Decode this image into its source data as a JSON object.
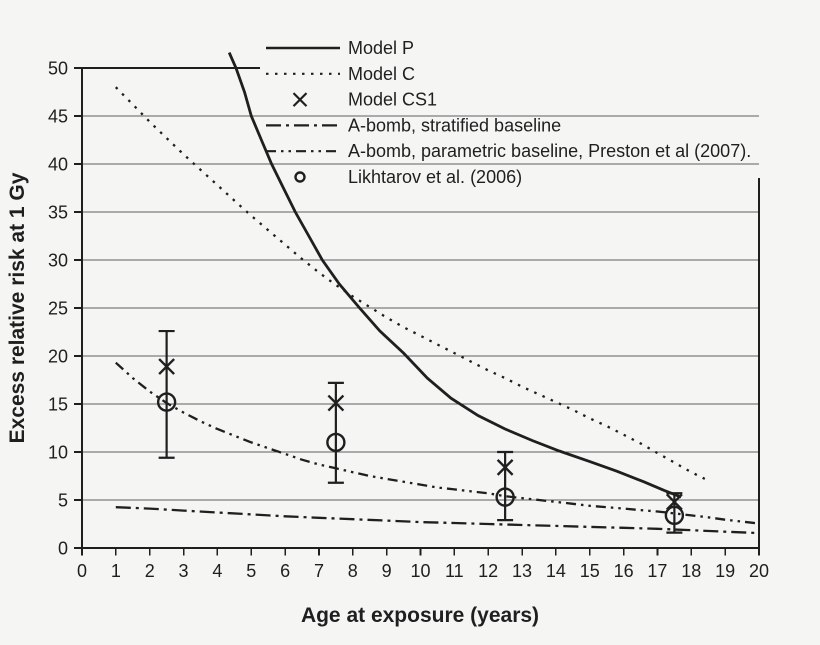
{
  "figure": {
    "background": "#f5f5f3",
    "ink_color": "#1f1f1f",
    "grid_color": "#606060"
  },
  "chart_data": {
    "type": "line",
    "title": "",
    "xlabel": "Age at exposure (years)",
    "ylabel": "Excess relative risk at 1 Gy",
    "xlim": [
      0,
      20
    ],
    "ylim": [
      0,
      50
    ],
    "x_ticks": [
      0,
      1,
      2,
      3,
      4,
      5,
      6,
      7,
      8,
      9,
      10,
      11,
      12,
      13,
      14,
      15,
      16,
      17,
      18,
      19,
      20
    ],
    "y_ticks": [
      0,
      5,
      10,
      15,
      20,
      25,
      30,
      35,
      40,
      45,
      50
    ],
    "grid": "horizontal gridlines every 5 units",
    "legend_position": "top-right inside plot, transparent background",
    "series": [
      {
        "id": "model_p",
        "label": "Model P",
        "style": "solid",
        "points": [
          [
            4.35,
            51.6
          ],
          [
            4.55,
            50
          ],
          [
            4.8,
            47.5
          ],
          [
            5.0,
            45
          ],
          [
            5.3,
            42.5
          ],
          [
            5.6,
            40
          ],
          [
            5.95,
            37.5
          ],
          [
            6.3,
            35
          ],
          [
            6.7,
            32.5
          ],
          [
            7.1,
            30
          ],
          [
            7.6,
            27.5
          ],
          [
            8.2,
            25
          ],
          [
            8.8,
            22.6
          ],
          [
            9.5,
            20.3
          ],
          [
            10.2,
            17.7
          ],
          [
            10.9,
            15.6
          ],
          [
            11.7,
            13.8
          ],
          [
            12.5,
            12.4
          ],
          [
            13.3,
            11.2
          ],
          [
            14.1,
            10.1
          ],
          [
            15,
            9
          ],
          [
            15.8,
            8
          ],
          [
            16.6,
            6.9
          ],
          [
            17.2,
            6
          ],
          [
            17.7,
            5.3
          ]
        ]
      },
      {
        "id": "model_c",
        "label": "Model C",
        "style": "dotted",
        "points": [
          [
            1,
            48
          ],
          [
            1.5,
            46.2
          ],
          [
            2,
            44.4
          ],
          [
            2.5,
            42.7
          ],
          [
            3,
            41
          ],
          [
            3.5,
            39.4
          ],
          [
            4,
            37.8
          ],
          [
            4.5,
            36.2
          ],
          [
            5,
            34.6
          ],
          [
            5.5,
            33.1
          ],
          [
            6,
            31.6
          ],
          [
            6.5,
            30.1
          ],
          [
            7,
            28.7
          ],
          [
            7.5,
            27.4
          ],
          [
            8,
            26.2
          ],
          [
            8.5,
            25.1
          ],
          [
            9,
            24
          ],
          [
            9.5,
            23
          ],
          [
            10,
            22.1
          ],
          [
            10.5,
            21.2
          ],
          [
            11,
            20.3
          ],
          [
            11.5,
            19.4
          ],
          [
            12,
            18.5
          ],
          [
            12.5,
            17.7
          ],
          [
            13,
            16.8
          ],
          [
            13.5,
            16
          ],
          [
            14,
            15.2
          ],
          [
            14.5,
            14.4
          ],
          [
            15,
            13.5
          ],
          [
            15.5,
            12.7
          ],
          [
            16,
            11.8
          ],
          [
            16.5,
            10.9
          ],
          [
            17,
            9.9
          ],
          [
            17.5,
            8.9
          ],
          [
            18,
            7.9
          ],
          [
            18.4,
            7.2
          ]
        ]
      },
      {
        "id": "model_cs1",
        "label": "Model CS1",
        "style": "marker-x",
        "points": [
          [
            2.5,
            18.9
          ],
          [
            7.5,
            15.1
          ],
          [
            12.5,
            8.4
          ],
          [
            17.5,
            4.8
          ]
        ]
      },
      {
        "id": "abomb_stratified",
        "label": "A-bomb, stratified baseline",
        "style": "dash-dot-long",
        "points": [
          [
            1,
            4.25
          ],
          [
            2,
            4.1
          ],
          [
            3,
            3.9
          ],
          [
            4,
            3.7
          ],
          [
            5,
            3.5
          ],
          [
            6,
            3.3
          ],
          [
            7,
            3.15
          ],
          [
            8,
            3.0
          ],
          [
            9,
            2.85
          ],
          [
            10,
            2.7
          ],
          [
            11,
            2.6
          ],
          [
            12,
            2.5
          ],
          [
            13,
            2.4
          ],
          [
            14,
            2.3
          ],
          [
            15,
            2.2
          ],
          [
            16,
            2.1
          ],
          [
            17,
            2.0
          ],
          [
            18,
            1.85
          ],
          [
            19,
            1.7
          ],
          [
            20,
            1.55
          ]
        ]
      },
      {
        "id": "abomb_parametric",
        "label": "A-bomb, parametric baseline, Preston et al (2007).",
        "style": "dash-dot-dot",
        "points": [
          [
            1,
            19.3
          ],
          [
            1.5,
            17.7
          ],
          [
            2,
            16.3
          ],
          [
            2.5,
            15.1
          ],
          [
            3,
            14.1
          ],
          [
            3.5,
            13.2
          ],
          [
            4,
            12.4
          ],
          [
            4.5,
            11.7
          ],
          [
            5,
            11
          ],
          [
            5.5,
            10.4
          ],
          [
            6,
            9.8
          ],
          [
            6.5,
            9.2
          ],
          [
            7,
            8.7
          ],
          [
            7.5,
            8.3
          ],
          [
            8,
            7.9
          ],
          [
            8.5,
            7.5
          ],
          [
            9,
            7.2
          ],
          [
            9.5,
            6.9
          ],
          [
            10,
            6.6
          ],
          [
            10.5,
            6.3
          ],
          [
            11,
            6.1
          ],
          [
            11.5,
            5.9
          ],
          [
            12,
            5.7
          ],
          [
            12.5,
            5.4
          ],
          [
            13,
            5.2
          ],
          [
            13.5,
            5.0
          ],
          [
            14,
            4.8
          ],
          [
            14.5,
            4.6
          ],
          [
            15,
            4.4
          ],
          [
            15.5,
            4.25
          ],
          [
            16,
            4.1
          ],
          [
            16.5,
            3.95
          ],
          [
            17,
            3.8
          ],
          [
            17.5,
            3.6
          ],
          [
            18,
            3.4
          ],
          [
            18.5,
            3.2
          ],
          [
            19,
            2.95
          ],
          [
            19.5,
            2.75
          ],
          [
            20,
            2.55
          ]
        ]
      },
      {
        "id": "likhtarov",
        "label": "Likhtarov et al. (2006)",
        "style": "marker-circle",
        "points": [
          [
            2.5,
            15.2
          ],
          [
            7.5,
            11.0
          ],
          [
            12.5,
            5.3
          ],
          [
            17.5,
            3.4
          ]
        ]
      }
    ],
    "error_bars": [
      {
        "x": 2.5,
        "low": 9.4,
        "high": 22.6
      },
      {
        "x": 7.5,
        "low": 6.8,
        "high": 17.2
      },
      {
        "x": 12.5,
        "low": 2.9,
        "high": 10.0
      },
      {
        "x": 17.5,
        "low": 1.6,
        "high": 5.7
      }
    ]
  }
}
